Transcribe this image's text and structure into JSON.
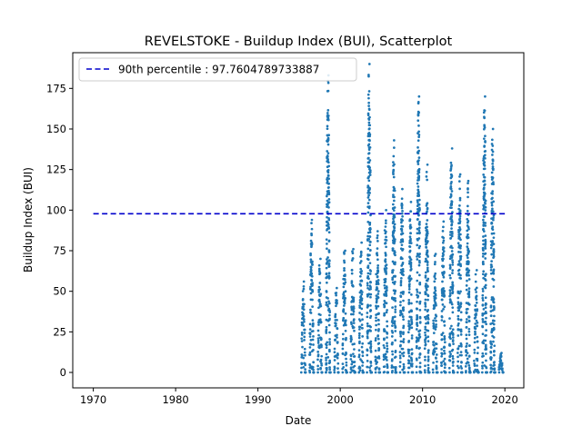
{
  "chart_data": {
    "type": "scatter",
    "title": "REVELSTOKE - Buildup Index (BUI), Scatterplot",
    "xlabel": "Date",
    "ylabel": "Buildup Index (BUI)",
    "xlim": [
      1967.5,
      2022.3
    ],
    "ylim": [
      -9.5,
      197
    ],
    "x_ticks": [
      1970,
      1980,
      1990,
      2000,
      2010,
      2020
    ],
    "y_ticks": [
      0,
      25,
      50,
      75,
      100,
      125,
      150,
      175
    ],
    "grid": false,
    "legend_position": "top-left",
    "point_color": "#1f77b4",
    "reference_line": {
      "label": "90th percentile : 97.7604789733887",
      "value": 97.7604789733887,
      "x_range": [
        1970,
        2020
      ],
      "color": "#0000cc",
      "style": "dashed"
    },
    "seasons": [
      {
        "year": 1995,
        "max": 56
      },
      {
        "year": 1996,
        "max": 94
      },
      {
        "year": 1997,
        "max": 70
      },
      {
        "year": 1998,
        "max": 183
      },
      {
        "year": 1999,
        "max": 52
      },
      {
        "year": 2000,
        "max": 75
      },
      {
        "year": 2001,
        "max": 76
      },
      {
        "year": 2002,
        "max": 80
      },
      {
        "year": 2003,
        "max": 190
      },
      {
        "year": 2004,
        "max": 87
      },
      {
        "year": 2005,
        "max": 100
      },
      {
        "year": 2006,
        "max": 143
      },
      {
        "year": 2007,
        "max": 113
      },
      {
        "year": 2008,
        "max": 105
      },
      {
        "year": 2009,
        "max": 170
      },
      {
        "year": 2010,
        "max": 128
      },
      {
        "year": 2011,
        "max": 73
      },
      {
        "year": 2012,
        "max": 93
      },
      {
        "year": 2013,
        "max": 138
      },
      {
        "year": 2014,
        "max": 122
      },
      {
        "year": 2015,
        "max": 118
      },
      {
        "year": 2016,
        "max": 63
      },
      {
        "year": 2017,
        "max": 170
      },
      {
        "year": 2018,
        "max": 150
      },
      {
        "year": 2019,
        "max": 12
      }
    ]
  }
}
